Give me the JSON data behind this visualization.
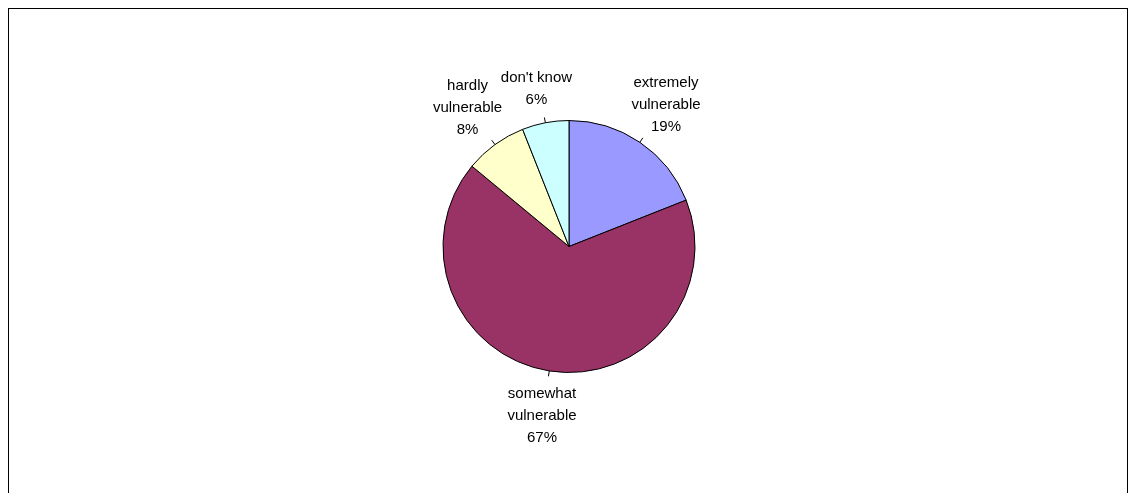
{
  "chart_data": {
    "type": "pie",
    "categories": [
      "extremely vulnerable",
      "somewhat vulnerable",
      "hardly vulnerable",
      "don't know"
    ],
    "values": [
      19,
      67,
      8,
      6
    ],
    "colors": [
      "#9999ff",
      "#993366",
      "#ffffcc",
      "#ccffff"
    ],
    "value_labels": [
      "19%",
      "67%",
      "8%",
      "6%"
    ],
    "legend": false
  }
}
